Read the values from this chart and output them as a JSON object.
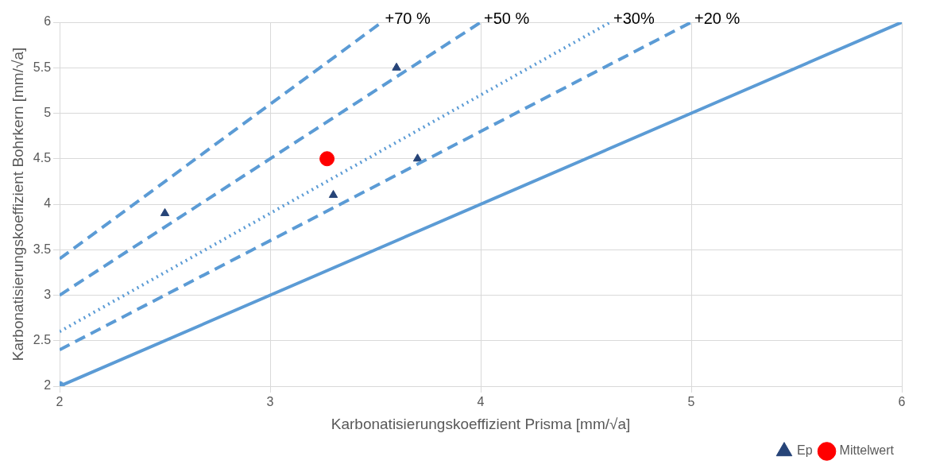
{
  "chart_data": {
    "type": "line",
    "xlabel": "Karbonatisierungskoeffizient Prisma [mm/√a]",
    "ylabel": "Karbonatisierungskoeffizient Bohrkern [mm/√a]",
    "series": [
      {
        "color": "#5b9bd5",
        "x": [
          2,
          6
        ],
        "values": [
          2,
          6
        ],
        "line_style": "solid",
        "marker": "none"
      },
      {
        "color": "#5b9bd5",
        "x": [
          2,
          5
        ],
        "values": [
          2.4,
          6
        ],
        "line_style": "dashed",
        "marker": "none"
      },
      {
        "color": "#5b9bd5",
        "x": [
          2,
          4.615
        ],
        "values": [
          2.6,
          6
        ],
        "line_style": "dotted",
        "marker": "none"
      },
      {
        "color": "#5b9bd5",
        "x": [
          2,
          4
        ],
        "values": [
          3,
          6
        ],
        "line_style": "dashed",
        "marker": "none"
      },
      {
        "color": "#5b9bd5",
        "x": [
          2,
          3.53
        ],
        "values": [
          3.4,
          6
        ],
        "line_style": "dashed",
        "marker": "none"
      },
      {
        "type": "scatter",
        "color": "#5b9bd5",
        "x": [
          2
        ],
        "values": [
          2
        ],
        "marker": "circle"
      },
      {
        "type": "scatter",
        "name": "Ep",
        "color": "#264478",
        "x": [
          2.5,
          3.3,
          3.6,
          3.7
        ],
        "values": [
          3.9,
          4.1,
          5.5,
          4.5
        ],
        "marker": "triangle"
      },
      {
        "type": "scatter",
        "name": "Mittelwert",
        "color": "#ff0000",
        "x": [
          3.27
        ],
        "values": [
          4.5
        ],
        "marker": "circle"
      }
    ],
    "annotations": [
      {
        "text": "+70 %",
        "x": 3.53,
        "y": 6
      },
      {
        "text": "+50 %",
        "x": 4,
        "y": 6
      },
      {
        "text": "+30%",
        "x": 4.615,
        "y": 6
      },
      {
        "text": "+20 %",
        "x": 5,
        "y": 6
      }
    ],
    "xlim": [
      2,
      6
    ],
    "xticks": [
      2,
      3,
      4,
      5,
      6
    ],
    "ylim": [
      2,
      6
    ],
    "yticks": [
      2,
      2.5,
      3,
      3.5,
      4,
      4.5,
      5,
      5.5,
      6
    ],
    "grid": true,
    "legend": "bottom right"
  }
}
